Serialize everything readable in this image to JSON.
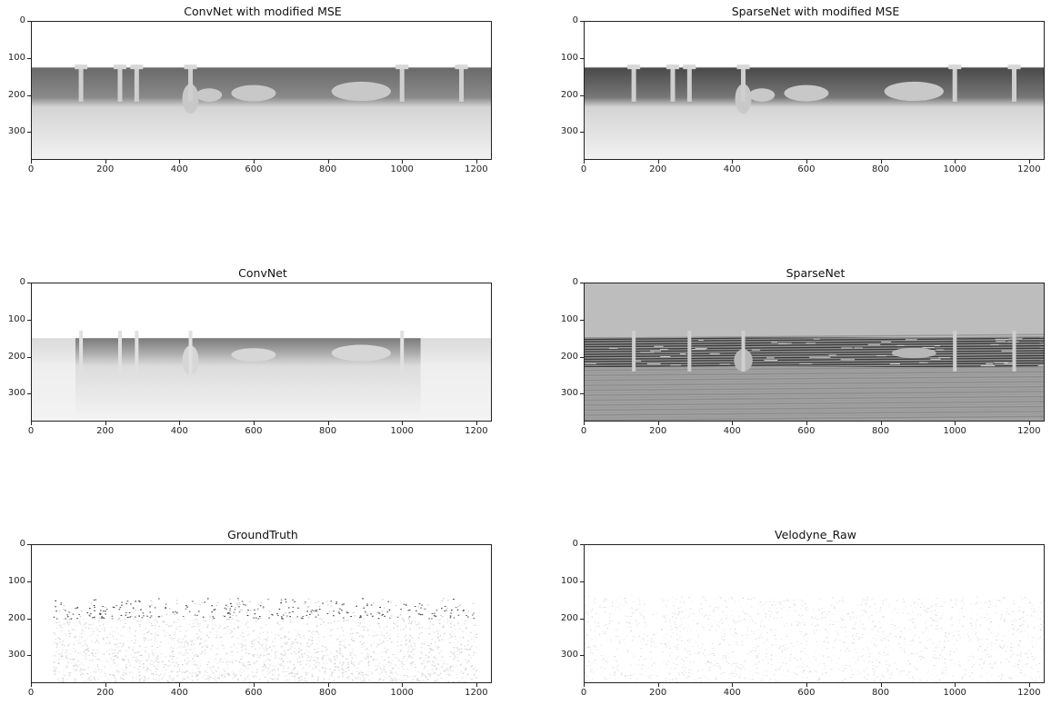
{
  "figure": {
    "panels": [
      {
        "id": "convnet-mse",
        "title": "ConvNet with modified MSE",
        "style": "dense-dark-band"
      },
      {
        "id": "sparsenet-mse",
        "title": "SparseNet with modified MSE",
        "style": "dense-darker-band"
      },
      {
        "id": "convnet",
        "title": "ConvNet",
        "style": "dense-light"
      },
      {
        "id": "sparsenet",
        "title": "SparseNet",
        "style": "gray-sky-streaks"
      },
      {
        "id": "groundtruth",
        "title": "GroundTruth",
        "style": "sparse-points"
      },
      {
        "id": "velodyne-raw",
        "title": "Velodyne_Raw",
        "style": "very-sparse-points"
      }
    ],
    "axes": {
      "x_ticks": [
        "0",
        "200",
        "400",
        "600",
        "800",
        "1000",
        "1200"
      ],
      "y_ticks": [
        "0",
        "100",
        "200",
        "300"
      ],
      "x_range": [
        0,
        1242
      ],
      "y_range": [
        0,
        375
      ],
      "colormap": "grayscale"
    }
  }
}
